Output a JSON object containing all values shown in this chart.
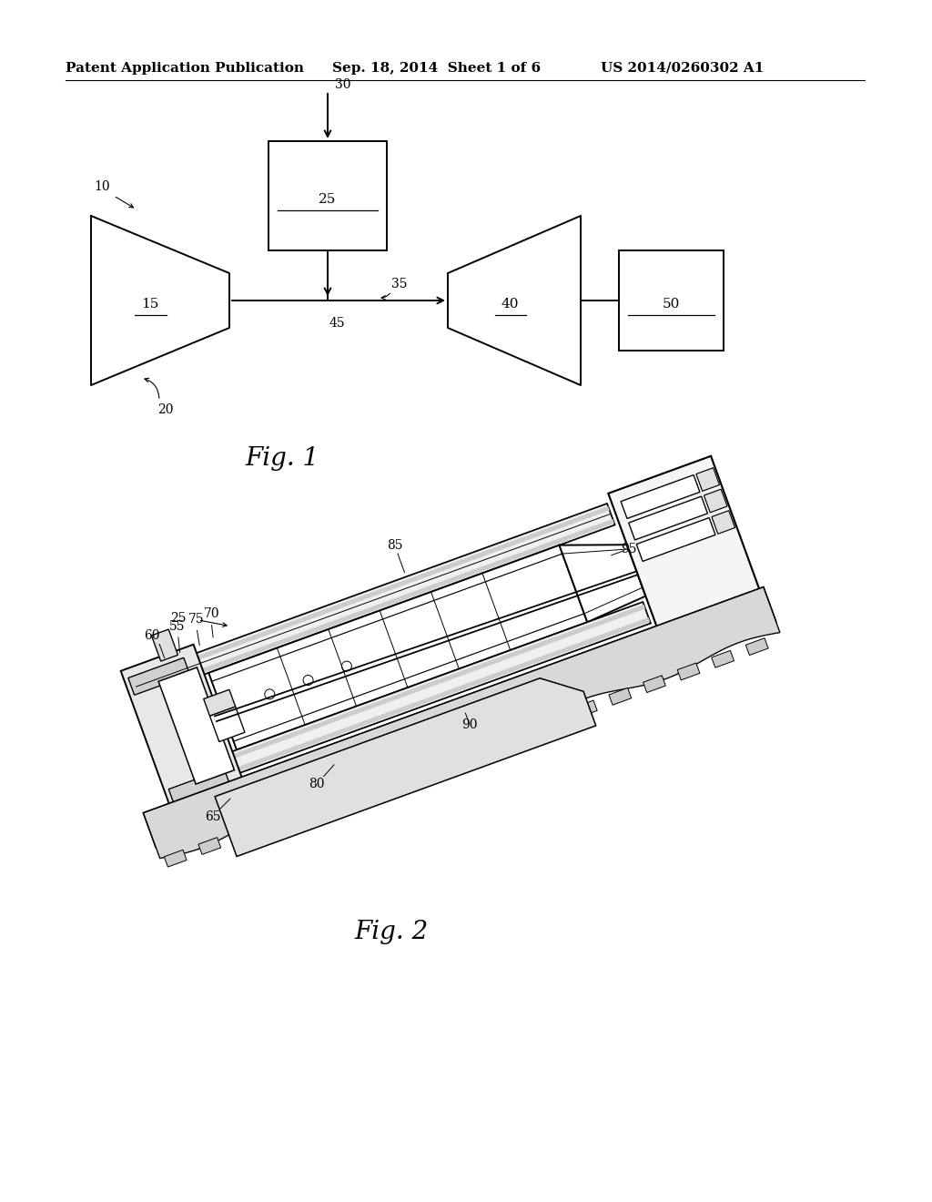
{
  "bg_color": "#ffffff",
  "header_left": "Patent Application Publication",
  "header_mid": "Sep. 18, 2014  Sheet 1 of 6",
  "header_right": "US 2014/0260302 A1",
  "ref_fontsize": 10,
  "fig1_label_fontsize": 20,
  "fig2_label_fontsize": 20,
  "line_color": "#000000",
  "line_width": 1.4
}
